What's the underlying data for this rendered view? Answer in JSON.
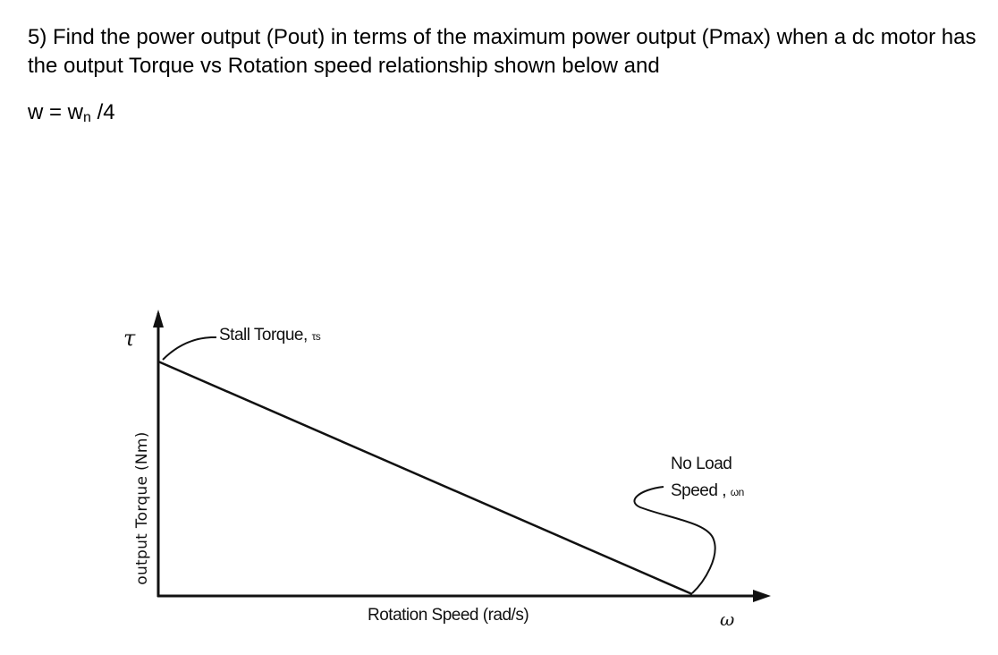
{
  "question": {
    "text": "5) Find the power output (Pout) in terms of the maximum power output (Pmax) when a dc motor has the output Torque vs Rotation speed relationship shown below and",
    "equation_prefix": "w = w",
    "equation_sub": "n",
    "equation_suffix": " /4"
  },
  "chart_data": {
    "type": "line",
    "title": "",
    "xlabel": "Rotation Speed (rad/s)",
    "ylabel": "output Torque (Nm)",
    "x_symbol": "ω",
    "y_symbol": "τ",
    "series": [
      {
        "x": [
          "0",
          "ωn"
        ],
        "y": [
          "τs",
          "0"
        ]
      }
    ],
    "annotations": [
      {
        "label": "Stall Torque, τs",
        "points_to": "y-intercept (τs)"
      },
      {
        "label_line1": "No Load",
        "label_line2": "Speed , ωn",
        "points_to": "x-intercept (ωn)"
      }
    ],
    "grid": false,
    "legend": "none"
  },
  "figure": {
    "stall_label": "Stall Torque, ",
    "stall_sub": "τs",
    "noload_line1": "No Load",
    "noload_line2": "Speed , ",
    "noload_sub": "ωn",
    "colors": {
      "ink": "#111111",
      "background": "#ffffff"
    }
  }
}
